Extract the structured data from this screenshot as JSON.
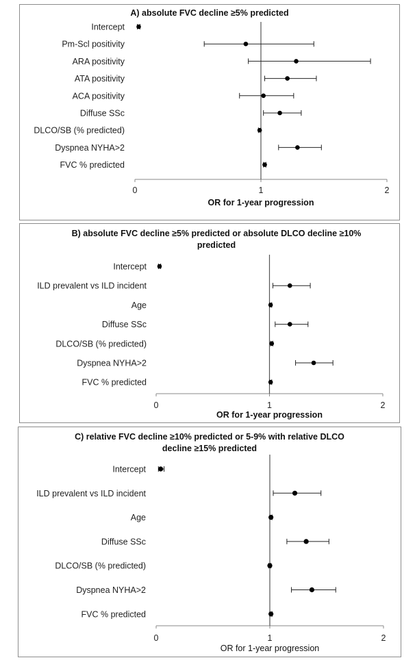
{
  "chart_data": [
    {
      "type": "forest",
      "title_lines": [
        "A) absolute FVC decline ≥5% predicted"
      ],
      "xlabel": "OR for 1-year progression",
      "xlim": [
        0,
        2
      ],
      "ticks": [
        "0",
        "1",
        "2"
      ],
      "reference_line": 1,
      "rows": [
        {
          "label": "Intercept",
          "or": 0.03,
          "low": 0.02,
          "high": 0.04
        },
        {
          "label": "Pm-Scl positivity",
          "or": 0.88,
          "low": 0.55,
          "high": 1.42
        },
        {
          "label": "ARA positivity",
          "or": 1.28,
          "low": 0.9,
          "high": 1.87
        },
        {
          "label": "ATA positivity",
          "or": 1.21,
          "low": 1.03,
          "high": 1.44
        },
        {
          "label": "ACA positivity",
          "or": 1.02,
          "low": 0.83,
          "high": 1.26
        },
        {
          "label": "Diffuse SSc",
          "or": 1.15,
          "low": 1.02,
          "high": 1.32
        },
        {
          "label": "DLCO/SB (% predicted)",
          "or": 0.99,
          "low": 0.98,
          "high": 1.0
        },
        {
          "label": "Dyspnea NYHA>2",
          "or": 1.29,
          "low": 1.14,
          "high": 1.48
        },
        {
          "label": "FVC % predicted",
          "or": 1.03,
          "low": 1.02,
          "high": 1.04
        }
      ]
    },
    {
      "type": "forest",
      "title_lines": [
        "B) absolute FVC decline ≥5% predicted or absolute DLCO decline ≥10%",
        "predicted"
      ],
      "xlabel": "OR for 1-year progression",
      "xlim": [
        0,
        2
      ],
      "ticks": [
        "0",
        "1",
        "2"
      ],
      "reference_line": 1,
      "rows": [
        {
          "label": "Intercept",
          "or": 0.03,
          "low": 0.02,
          "high": 0.04
        },
        {
          "label": "ILD prevalent vs ILD incident",
          "or": 1.18,
          "low": 1.03,
          "high": 1.36
        },
        {
          "label": "Age",
          "or": 1.01,
          "low": 1.0,
          "high": 1.02
        },
        {
          "label": "Diffuse SSc",
          "or": 1.18,
          "low": 1.05,
          "high": 1.34
        },
        {
          "label": "DLCO/SB (% predicted)",
          "or": 1.02,
          "low": 1.01,
          "high": 1.03
        },
        {
          "label": "Dyspnea NYHA>2",
          "or": 1.39,
          "low": 1.23,
          "high": 1.56
        },
        {
          "label": "FVC % predicted",
          "or": 1.01,
          "low": 1.0,
          "high": 1.02
        }
      ]
    },
    {
      "type": "forest",
      "title_lines": [
        "C) relative FVC decline ≥10% predicted or 5-9% with relative DLCO",
        "decline ≥15% predicted"
      ],
      "xlabel": "OR for 1-year progression",
      "xlim": [
        0,
        2
      ],
      "ticks": [
        "0",
        "1",
        "2"
      ],
      "reference_line": 1,
      "rows": [
        {
          "label": "Intercept",
          "or": 0.04,
          "low": 0.02,
          "high": 0.07
        },
        {
          "label": "ILD prevalent vs ILD incident",
          "or": 1.22,
          "low": 1.03,
          "high": 1.45
        },
        {
          "label": "Age",
          "or": 1.01,
          "low": 1.0,
          "high": 1.02
        },
        {
          "label": "Diffuse SSc",
          "or": 1.32,
          "low": 1.15,
          "high": 1.52
        },
        {
          "label": "DLCO/SB (% predicted)",
          "or": 1.0,
          "low": 0.99,
          "high": 1.01
        },
        {
          "label": "Dyspnea NYHA>2",
          "or": 1.37,
          "low": 1.19,
          "high": 1.58
        },
        {
          "label": "FVC % predicted",
          "or": 1.01,
          "low": 1.0,
          "high": 1.02
        }
      ]
    }
  ]
}
